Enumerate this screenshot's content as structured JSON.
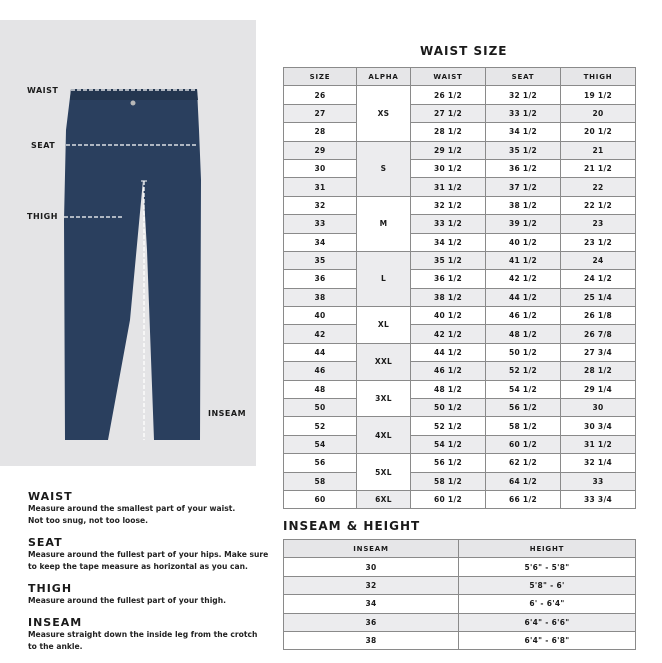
{
  "diagram": {
    "labels": {
      "waist": "WAIST",
      "seat": "SEAT",
      "thigh": "THIGH",
      "inseam": "INSEAM"
    },
    "colors": {
      "panel": "#e4e4e6",
      "denim": "#2a3f5e"
    }
  },
  "guide": [
    {
      "title": "WAIST",
      "text": "Measure around the smallest part of your waist. Not too snug, not too loose."
    },
    {
      "title": "SEAT",
      "text": "Measure around the fullest part of your hips. Make sure to keep the tape measure as horizontal as you can."
    },
    {
      "title": "THIGH",
      "text": "Measure around the fullest part of your thigh."
    },
    {
      "title": "INSEAM",
      "text": "Measure straight down the inside leg from the crotch to the ankle."
    }
  ],
  "waist_table": {
    "title": "WAIST SIZE",
    "headers": [
      "SIZE",
      "ALPHA",
      "WAIST",
      "SEAT",
      "THIGH"
    ],
    "alpha_groups": [
      {
        "label": "XS",
        "rows": 3
      },
      {
        "label": "S",
        "rows": 3
      },
      {
        "label": "M",
        "rows": 3
      },
      {
        "label": "L",
        "rows": 3
      },
      {
        "label": "XL",
        "rows": 2
      },
      {
        "label": "XXL",
        "rows": 2
      },
      {
        "label": "3XL",
        "rows": 2
      },
      {
        "label": "4XL",
        "rows": 2
      },
      {
        "label": "5XL",
        "rows": 2
      },
      {
        "label": "6XL",
        "rows": 1
      }
    ],
    "rows": [
      [
        "26",
        "26 1/2",
        "32 1/2",
        "19 1/2"
      ],
      [
        "27",
        "27 1/2",
        "33 1/2",
        "20"
      ],
      [
        "28",
        "28 1/2",
        "34 1/2",
        "20 1/2"
      ],
      [
        "29",
        "29 1/2",
        "35 1/2",
        "21"
      ],
      [
        "30",
        "30 1/2",
        "36 1/2",
        "21 1/2"
      ],
      [
        "31",
        "31 1/2",
        "37 1/2",
        "22"
      ],
      [
        "32",
        "32 1/2",
        "38 1/2",
        "22 1/2"
      ],
      [
        "33",
        "33 1/2",
        "39 1/2",
        "23"
      ],
      [
        "34",
        "34 1/2",
        "40 1/2",
        "23 1/2"
      ],
      [
        "35",
        "35 1/2",
        "41 1/2",
        "24"
      ],
      [
        "36",
        "36 1/2",
        "42 1/2",
        "24 1/2"
      ],
      [
        "38",
        "38 1/2",
        "44 1/2",
        "25 1/4"
      ],
      [
        "40",
        "40 1/2",
        "46 1/2",
        "26 1/8"
      ],
      [
        "42",
        "42 1/2",
        "48 1/2",
        "26 7/8"
      ],
      [
        "44",
        "44 1/2",
        "50 1/2",
        "27 3/4"
      ],
      [
        "46",
        "46 1/2",
        "52 1/2",
        "28 1/2"
      ],
      [
        "48",
        "48 1/2",
        "54 1/2",
        "29 1/4"
      ],
      [
        "50",
        "50 1/2",
        "56 1/2",
        "30"
      ],
      [
        "52",
        "52 1/2",
        "58 1/2",
        "30 3/4"
      ],
      [
        "54",
        "54 1/2",
        "60 1/2",
        "31 1/2"
      ],
      [
        "56",
        "56 1/2",
        "62 1/2",
        "32 1/4"
      ],
      [
        "58",
        "58 1/2",
        "64 1/2",
        "33"
      ],
      [
        "60",
        "60 1/2",
        "66 1/2",
        "33 3/4"
      ]
    ]
  },
  "inseam_table": {
    "title": "INSEAM & HEIGHT",
    "headers": [
      "INSEAM",
      "HEIGHT"
    ],
    "rows": [
      [
        "30",
        "5'6\" - 5'8\""
      ],
      [
        "32",
        "5'8\" - 6'"
      ],
      [
        "34",
        "6' - 6'4\""
      ],
      [
        "36",
        "6'4\" - 6'6\""
      ],
      [
        "38",
        "6'4\" - 6'8\""
      ]
    ]
  }
}
